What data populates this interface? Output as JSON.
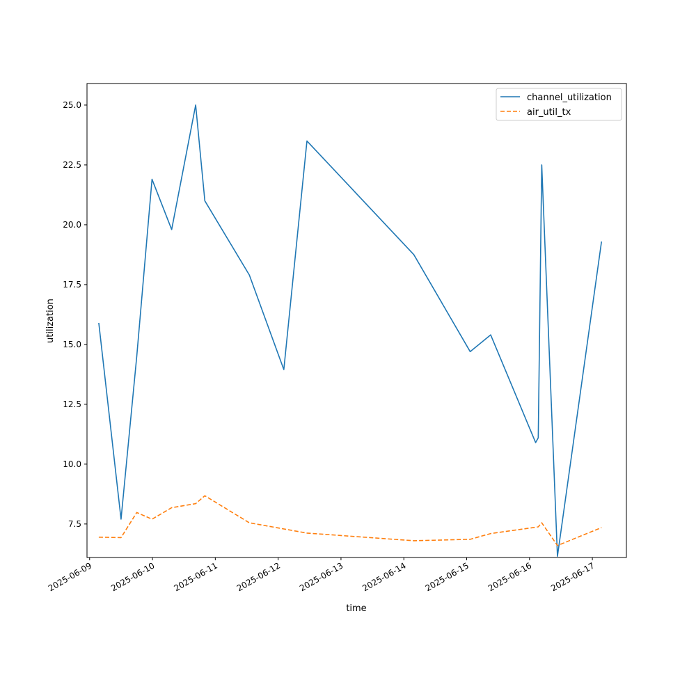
{
  "chart_data": {
    "type": "line",
    "xlabel": "time",
    "ylabel": "utilization",
    "xlim": [
      "2025-06-08 23:00",
      "2025-06-17 13:00"
    ],
    "ylim": [
      6.1,
      25.9
    ],
    "x_ticks": [
      "2025-06-09",
      "2025-06-10",
      "2025-06-11",
      "2025-06-12",
      "2025-06-13",
      "2025-06-14",
      "2025-06-15",
      "2025-06-16",
      "2025-06-17"
    ],
    "y_ticks": [
      "7.5",
      "10.0",
      "12.5",
      "15.0",
      "17.5",
      "20.0",
      "22.5",
      "25.0"
    ],
    "grid": false,
    "legend_position": "upper right",
    "series": [
      {
        "name": "channel_utilization",
        "color": "#1f77b4",
        "dash": "solid",
        "points": [
          [
            "2025-06-09 03:30",
            15.9
          ],
          [
            "2025-06-09 12:00",
            7.7
          ],
          [
            "2025-06-09 18:00",
            14.5
          ],
          [
            "2025-06-09 23:50",
            21.9
          ],
          [
            "2025-06-10 07:20",
            19.8
          ],
          [
            "2025-06-10 16:30",
            25.0
          ],
          [
            "2025-06-10 20:00",
            21.0
          ],
          [
            "2025-06-11 13:00",
            17.9
          ],
          [
            "2025-06-12 02:10",
            13.95
          ],
          [
            "2025-06-12 11:00",
            23.5
          ],
          [
            "2025-06-14 03:50",
            18.75
          ],
          [
            "2025-06-15 01:20",
            14.7
          ],
          [
            "2025-06-15 09:10",
            15.4
          ],
          [
            "2025-06-16 02:20",
            10.9
          ],
          [
            "2025-06-16 03:20",
            11.1
          ],
          [
            "2025-06-16 04:40",
            22.5
          ],
          [
            "2025-06-16 10:40",
            6.15
          ],
          [
            "2025-06-17 03:30",
            19.3
          ]
        ]
      },
      {
        "name": "air_util_tx",
        "color": "#ff7f0e",
        "dash": "dashed",
        "points": [
          [
            "2025-06-09 03:30",
            6.95
          ],
          [
            "2025-06-09 12:00",
            6.93
          ],
          [
            "2025-06-09 18:00",
            7.98
          ],
          [
            "2025-06-09 23:50",
            7.7
          ],
          [
            "2025-06-10 07:20",
            8.18
          ],
          [
            "2025-06-10 16:30",
            8.35
          ],
          [
            "2025-06-10 20:00",
            8.68
          ],
          [
            "2025-06-11 13:00",
            7.55
          ],
          [
            "2025-06-12 11:00",
            7.12
          ],
          [
            "2025-06-14 03:50",
            6.8
          ],
          [
            "2025-06-15 01:20",
            6.86
          ],
          [
            "2025-06-15 09:10",
            7.1
          ],
          [
            "2025-06-16 03:20",
            7.38
          ],
          [
            "2025-06-16 04:40",
            7.55
          ],
          [
            "2025-06-16 10:40",
            6.6
          ],
          [
            "2025-06-17 03:30",
            7.35
          ]
        ]
      }
    ]
  }
}
